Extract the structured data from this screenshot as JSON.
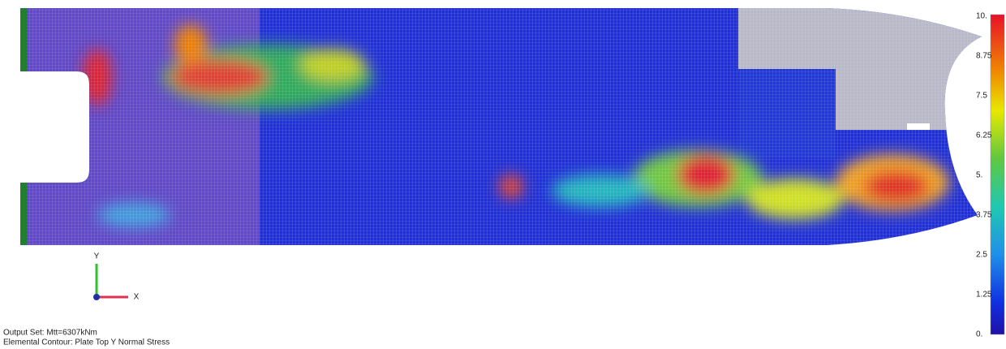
{
  "legend": {
    "labels": [
      "10.",
      "8.75",
      "7.5",
      "6.25",
      "5.",
      "3.75",
      "2.5",
      "1.25",
      "0."
    ]
  },
  "axes": {
    "y": "Y",
    "x": "X"
  },
  "footer": {
    "output_set": "Output Set: Mtt=6307kNm",
    "contour": "Elemental Contour: Plate Top Y Normal Stress"
  }
}
